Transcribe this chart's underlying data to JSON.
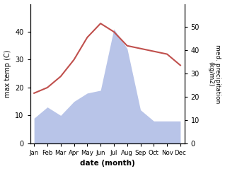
{
  "months": [
    "Jan",
    "Feb",
    "Mar",
    "Apr",
    "May",
    "Jun",
    "Jul",
    "Aug",
    "Sep",
    "Oct",
    "Nov",
    "Dec"
  ],
  "temperature": [
    18,
    20,
    24,
    30,
    38,
    43,
    40,
    35,
    34,
    33,
    32,
    28
  ],
  "precipitation": [
    9,
    13,
    10,
    15,
    18,
    19,
    41,
    34,
    12,
    8,
    8,
    8
  ],
  "temp_color": "#c0504d",
  "precip_fill_color": "#b8c4e8",
  "precip_edge_color": "#b8c4e8",
  "temp_ylim": [
    0,
    50
  ],
  "precip_ylim": [
    0,
    60
  ],
  "temp_yticks": [
    0,
    10,
    20,
    30,
    40
  ],
  "precip_yticks": [
    0,
    10,
    20,
    30,
    40,
    50
  ],
  "xlabel": "date (month)",
  "ylabel_left": "max temp (C)",
  "ylabel_right": "med. precipitation\n(kg/m2)",
  "figsize": [
    3.18,
    2.42
  ],
  "dpi": 100
}
